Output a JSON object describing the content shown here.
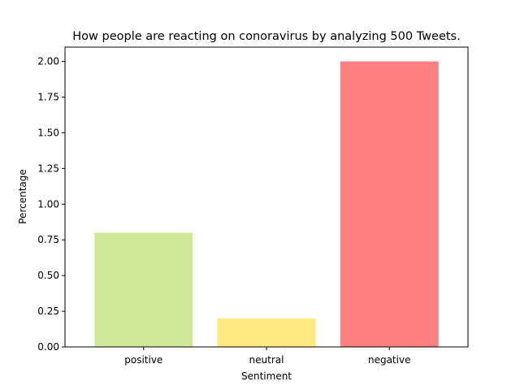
{
  "chart_data": {
    "type": "bar",
    "title": "How people are reacting on conoravirus by analyzing 500 Tweets.",
    "xlabel": "Sentiment",
    "ylabel": "Percentage",
    "categories": [
      "positive",
      "neutral",
      "negative"
    ],
    "values": [
      0.8,
      0.2,
      2.0
    ],
    "colors": [
      "#d0e699",
      "#ffe880",
      "#ff8080"
    ],
    "ylim": [
      0,
      2.1
    ],
    "yticks": [
      0.0,
      0.25,
      0.5,
      0.75,
      1.0,
      1.25,
      1.5,
      1.75,
      2.0
    ],
    "ytick_labels": [
      "0.00",
      "0.25",
      "0.50",
      "0.75",
      "1.00",
      "1.25",
      "1.50",
      "1.75",
      "2.00"
    ],
    "grid": false,
    "legend": "none"
  }
}
